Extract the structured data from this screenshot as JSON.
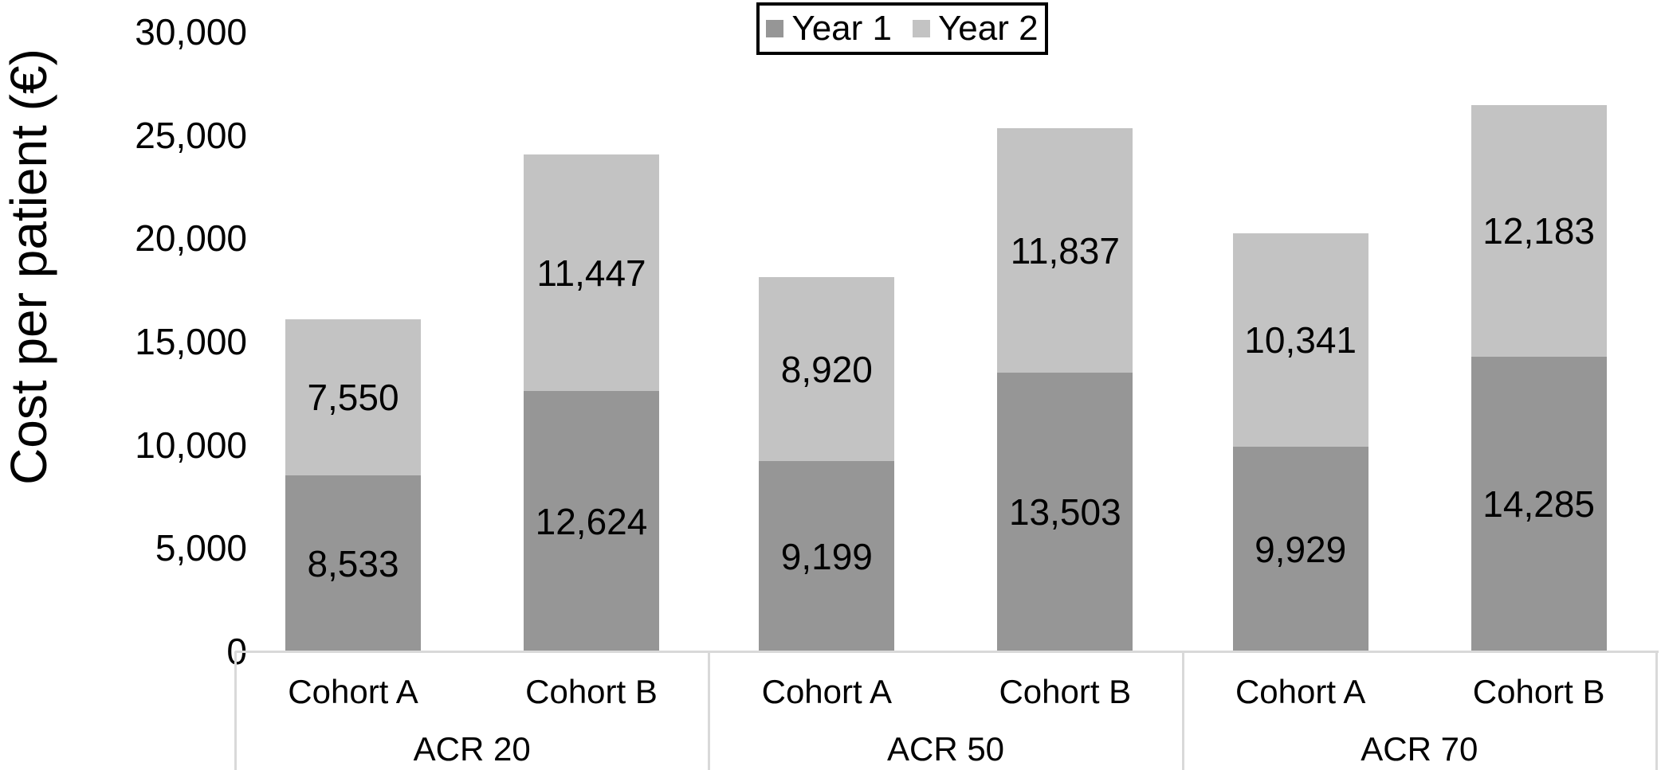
{
  "chart_data": {
    "type": "bar",
    "stacked": true,
    "ylabel": "Cost per patient (€)",
    "ylim": [
      0,
      30000
    ],
    "grid": false,
    "yticks": [
      {
        "value": 30000,
        "label": "30,000"
      },
      {
        "value": 25000,
        "label": "25,000"
      },
      {
        "value": 20000,
        "label": "20,000"
      },
      {
        "value": 15000,
        "label": "15,000"
      },
      {
        "value": 10000,
        "label": "10,000"
      },
      {
        "value": 5000,
        "label": "5,000"
      },
      {
        "value": 0,
        "label": "0"
      }
    ],
    "groups": [
      {
        "label": "ACR 20",
        "categories": [
          "Cohort A",
          "Cohort B"
        ]
      },
      {
        "label": "ACR 50",
        "categories": [
          "Cohort A",
          "Cohort B"
        ]
      },
      {
        "label": "ACR 70",
        "categories": [
          "Cohort A",
          "Cohort B"
        ]
      }
    ],
    "series": [
      {
        "name": "Year 1",
        "color": "#969696",
        "values": [
          8533,
          12624,
          9199,
          13503,
          9929,
          14285
        ],
        "value_labels": [
          "8,533",
          "12,624",
          "9,199",
          "13,503",
          "9,929",
          "14,285"
        ]
      },
      {
        "name": "Year 2",
        "color": "#c3c3c3",
        "values": [
          7550,
          11447,
          8920,
          11837,
          10341,
          12183
        ],
        "value_labels": [
          "7,550",
          "11,447",
          "8,920",
          "11,837",
          "10,341",
          "12,183"
        ]
      }
    ],
    "legend_position": "top-center",
    "axis_line_color": "#d9d9d9",
    "label_color": "#000000",
    "background_color": "#ffffff"
  }
}
